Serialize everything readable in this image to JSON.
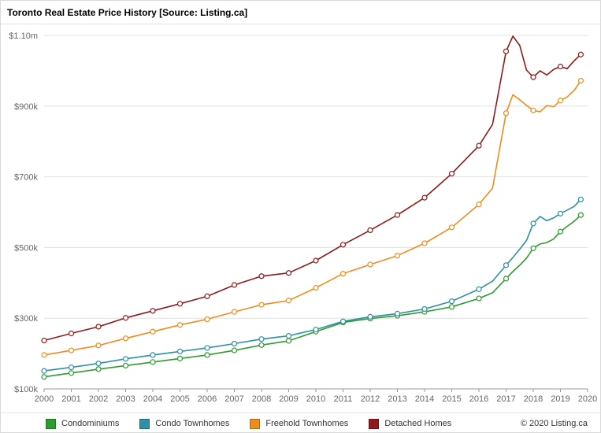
{
  "header": {
    "title": "Toronto Real Estate Price History [Source: Listing.ca]"
  },
  "footer": {
    "copyright": "© 2020 Listing.ca"
  },
  "chart_data": {
    "type": "line",
    "title": "Toronto Real Estate Price History [Source: Listing.ca]",
    "xlabel": "",
    "ylabel": "",
    "value_unit": "CAD thousands",
    "grid": "horizontal",
    "legend_position": "bottom",
    "marker": "open-circle",
    "xlim": [
      2000,
      2020
    ],
    "ylim": [
      100,
      1100
    ],
    "x_ticks": [
      2000,
      2001,
      2002,
      2003,
      2004,
      2005,
      2006,
      2007,
      2008,
      2009,
      2010,
      2011,
      2012,
      2013,
      2014,
      2015,
      2016,
      2017,
      2018,
      2019,
      2020
    ],
    "y_ticks": [
      {
        "value": 100,
        "label": "$100k"
      },
      {
        "value": 300,
        "label": "$300k"
      },
      {
        "value": 500,
        "label": "$500k"
      },
      {
        "value": 700,
        "label": "$700k"
      },
      {
        "value": 900,
        "label": "$900k"
      },
      {
        "value": 1100,
        "label": "$1.10m"
      }
    ],
    "x": [
      2000,
      2001,
      2002,
      2003,
      2004,
      2005,
      2006,
      2007,
      2008,
      2009,
      2010,
      2011,
      2012,
      2013,
      2014,
      2015,
      2016,
      2016.5,
      2017,
      2017.25,
      2017.5,
      2017.75,
      2018,
      2018.25,
      2018.5,
      2018.75,
      2019,
      2019.25,
      2019.5,
      2019.75
    ],
    "series": [
      {
        "name": "Condominiums",
        "color": "#2E9B2E",
        "values": [
          134,
          145,
          156,
          166,
          176,
          186,
          196,
          209,
          224,
          236,
          262,
          288,
          299,
          307,
          318,
          332,
          356,
          372,
          412,
          432,
          450,
          470,
          498,
          510,
          514,
          524,
          545,
          560,
          574,
          592
        ]
      },
      {
        "name": "Condo Townhomes",
        "color": "#2B91A3",
        "values": [
          151,
          161,
          172,
          185,
          196,
          206,
          216,
          228,
          241,
          250,
          268,
          291,
          304,
          313,
          326,
          348,
          382,
          405,
          450,
          472,
          495,
          520,
          568,
          588,
          576,
          584,
          596,
          606,
          616,
          636
        ]
      },
      {
        "name": "Freehold Townhomes",
        "color": "#F08C1E",
        "values": [
          196,
          209,
          223,
          243,
          262,
          281,
          297,
          318,
          338,
          350,
          386,
          426,
          452,
          477,
          512,
          557,
          622,
          668,
          880,
          932,
          918,
          902,
          888,
          884,
          902,
          898,
          916,
          926,
          944,
          972
        ]
      },
      {
        "name": "Detached Homes",
        "color": "#8E1B1B",
        "values": [
          237,
          257,
          276,
          301,
          321,
          341,
          362,
          394,
          419,
          428,
          463,
          508,
          549,
          592,
          641,
          709,
          788,
          848,
          1055,
          1098,
          1072,
          1002,
          982,
          1000,
          988,
          1004,
          1012,
          1006,
          1028,
          1046
        ]
      }
    ]
  }
}
